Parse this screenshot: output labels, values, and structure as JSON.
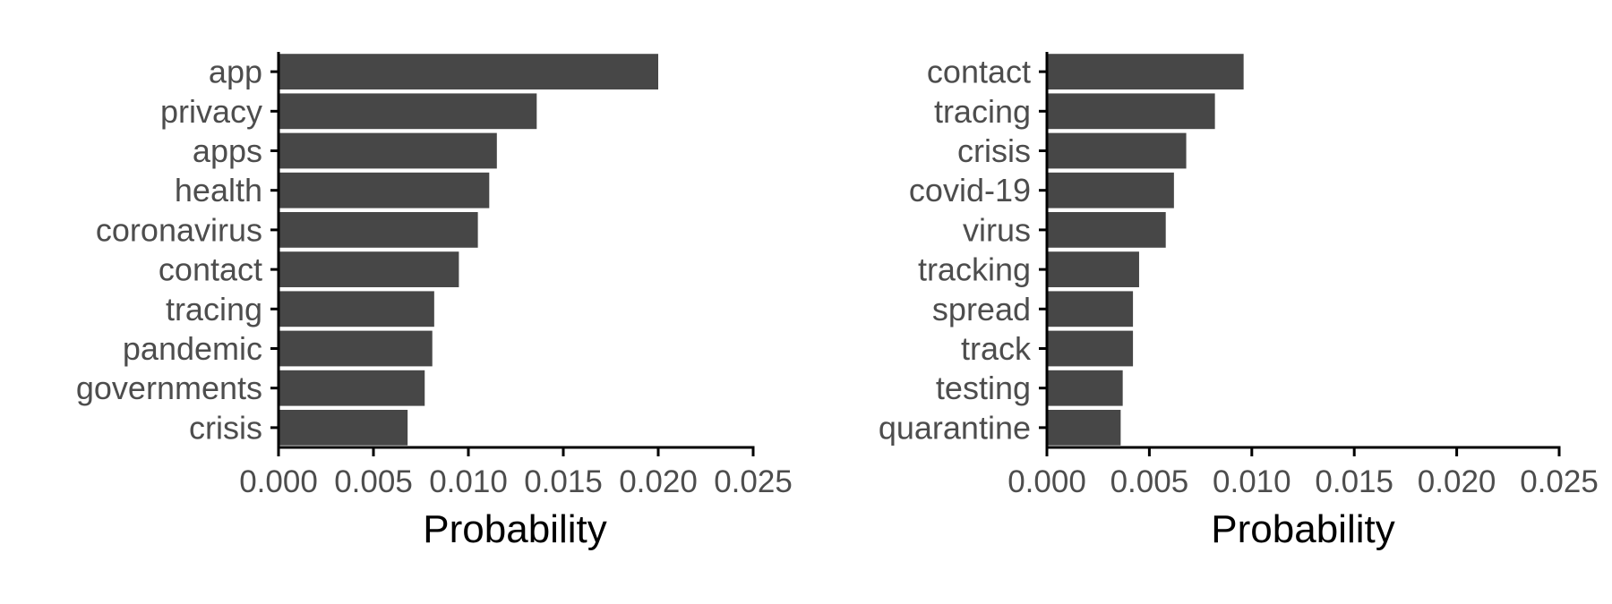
{
  "chart_data": [
    {
      "type": "bar",
      "orientation": "horizontal",
      "categories": [
        "app",
        "privacy",
        "apps",
        "health",
        "coronavirus",
        "contact",
        "tracing",
        "pandemic",
        "governments",
        "crisis"
      ],
      "values": [
        0.02,
        0.0136,
        0.0115,
        0.0111,
        0.0105,
        0.0095,
        0.0082,
        0.0081,
        0.0077,
        0.0068
      ],
      "xlabel": "Probability",
      "xlim": [
        0,
        0.025
      ],
      "xticks": [
        "0.000",
        "0.005",
        "0.010",
        "0.015",
        "0.020",
        "0.025"
      ],
      "bar_color": "#474747",
      "grid": false,
      "legend": "none"
    },
    {
      "type": "bar",
      "orientation": "horizontal",
      "categories": [
        "contact",
        "tracing",
        "crisis",
        "covid-19",
        "virus",
        "tracking",
        "spread",
        "track",
        "testing",
        "quarantine"
      ],
      "values": [
        0.0096,
        0.0082,
        0.0068,
        0.0062,
        0.0058,
        0.0045,
        0.0042,
        0.0042,
        0.0037,
        0.0036
      ],
      "xlabel": "Probability",
      "xlim": [
        0,
        0.025
      ],
      "xticks": [
        "0.000",
        "0.005",
        "0.010",
        "0.015",
        "0.020",
        "0.025"
      ],
      "bar_color": "#474747",
      "grid": false,
      "legend": "none"
    }
  ]
}
